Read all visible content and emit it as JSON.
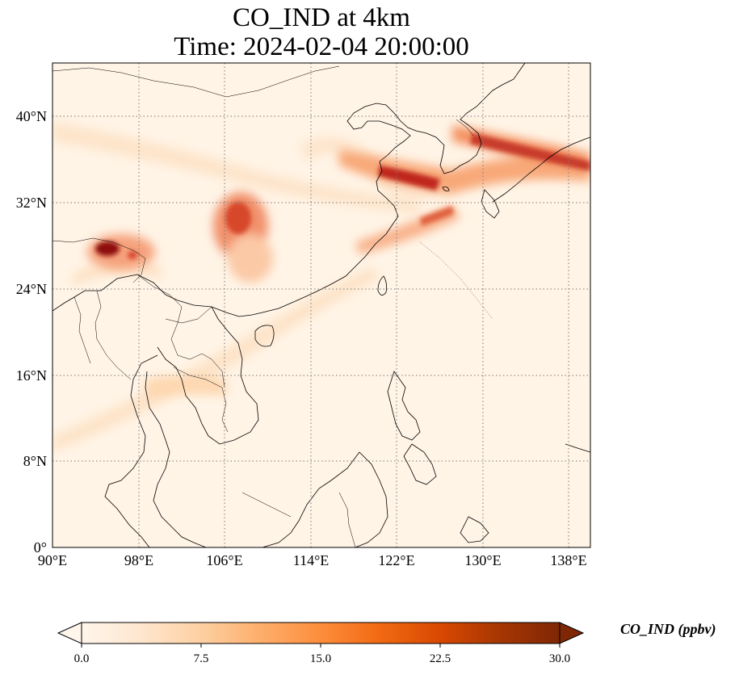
{
  "title": {
    "line1": "CO_IND at 4km",
    "line2": "Time: 2024-02-04 20:00:00"
  },
  "map": {
    "lon_range": [
      90,
      140
    ],
    "lat_range": [
      0,
      44
    ],
    "lon_ticks": [
      "90°E",
      "98°E",
      "106°E",
      "114°E",
      "122°E",
      "130°E",
      "138°E"
    ],
    "lat_ticks": [
      "0°",
      "8°N",
      "16°N",
      "24°N",
      "32°N",
      "40°N"
    ],
    "grid": "dotted",
    "coastlines": true,
    "borders": true
  },
  "colorbar": {
    "label": "CO_IND (ppbv)",
    "ticks": [
      "0.0",
      "7.5",
      "15.0",
      "22.5",
      "30.0"
    ],
    "range": [
      0,
      30
    ],
    "extend": "both",
    "colormap": [
      "#fff5eb",
      "#fee6ce",
      "#fdd0a2",
      "#fdae6b",
      "#fd8d3c",
      "#f16913",
      "#d94801",
      "#a63603",
      "#7f2704"
    ]
  }
}
